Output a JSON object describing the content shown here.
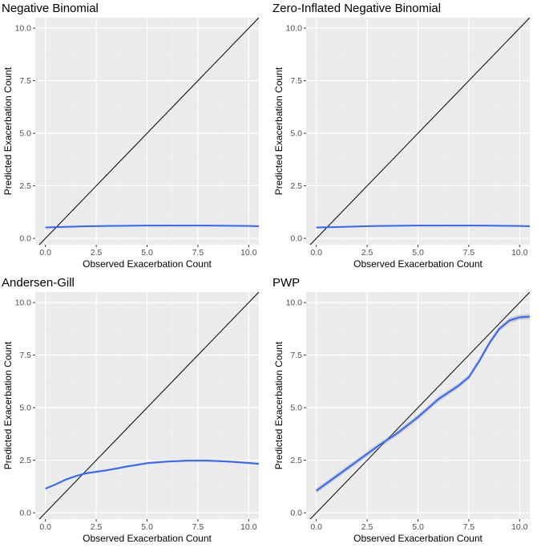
{
  "chart_data": [
    {
      "type": "line",
      "title": "Negative Binomial",
      "xlabel": "Observed Exacerbation Count",
      "ylabel": "Predicted Exacerbation Count",
      "xlim": [
        -0.5,
        10.5
      ],
      "ylim": [
        -0.3,
        10.5
      ],
      "xticks": [
        0,
        2.5,
        5,
        7.5,
        10
      ],
      "xtick_labels": [
        "0.0",
        "2.5",
        "5.0",
        "7.5",
        "10.0"
      ],
      "yticks": [
        0,
        2.5,
        5,
        7.5,
        10
      ],
      "ytick_labels": [
        "0.0",
        "2.5",
        "5.0",
        "7.5",
        "10.0"
      ],
      "reference_line": "y = x",
      "series": [
        {
          "name": "smooth fit",
          "color": "#3366ff",
          "x": [
            0,
            1,
            2,
            3,
            4,
            5,
            6,
            7,
            8,
            9,
            10,
            10.5
          ],
          "y": [
            0.52,
            0.55,
            0.58,
            0.59,
            0.6,
            0.61,
            0.61,
            0.61,
            0.61,
            0.6,
            0.59,
            0.58
          ],
          "band": 0.02
        }
      ]
    },
    {
      "type": "line",
      "title": "Zero-Inflated Negative Binomial",
      "xlabel": "Observed Exacerbation Count",
      "ylabel": "Predicted Exacerbation Count",
      "xlim": [
        -0.5,
        10.5
      ],
      "ylim": [
        -0.3,
        10.5
      ],
      "xticks": [
        0,
        2.5,
        5,
        7.5,
        10
      ],
      "xtick_labels": [
        "0.0",
        "2.5",
        "5.0",
        "7.5",
        "10.0"
      ],
      "yticks": [
        0,
        2.5,
        5,
        7.5,
        10
      ],
      "ytick_labels": [
        "0.0",
        "2.5",
        "5.0",
        "7.5",
        "10.0"
      ],
      "reference_line": "y = x",
      "series": [
        {
          "name": "smooth fit",
          "color": "#3366ff",
          "x": [
            0,
            1,
            2,
            3,
            4,
            5,
            6,
            7,
            8,
            9,
            10,
            10.5
          ],
          "y": [
            0.52,
            0.54,
            0.57,
            0.59,
            0.6,
            0.61,
            0.61,
            0.61,
            0.61,
            0.6,
            0.59,
            0.58
          ],
          "band": 0.02
        }
      ]
    },
    {
      "type": "line",
      "title": "Andersen-Gill",
      "xlabel": "Observed Exacerbation Count",
      "ylabel": "Predicted Exacerbation Count",
      "xlim": [
        -0.5,
        10.5
      ],
      "ylim": [
        -0.3,
        10.5
      ],
      "xticks": [
        0,
        2.5,
        5,
        7.5,
        10
      ],
      "xtick_labels": [
        "0.0",
        "2.5",
        "5.0",
        "7.5",
        "10.0"
      ],
      "yticks": [
        0,
        2.5,
        5,
        7.5,
        10
      ],
      "ytick_labels": [
        "0.0",
        "2.5",
        "5.0",
        "7.5",
        "10.0"
      ],
      "reference_line": "y = x",
      "series": [
        {
          "name": "smooth fit",
          "color": "#3366ff",
          "x": [
            0,
            0.5,
            1,
            1.5,
            2,
            3,
            4,
            5,
            6,
            7,
            8,
            9,
            10,
            10.5
          ],
          "y": [
            1.15,
            1.35,
            1.58,
            1.75,
            1.88,
            2.02,
            2.2,
            2.36,
            2.44,
            2.48,
            2.48,
            2.44,
            2.37,
            2.33
          ],
          "band": 0.05
        }
      ]
    },
    {
      "type": "line",
      "title": "PWP",
      "xlabel": "Observed Exacerbation Count",
      "ylabel": "Predicted Exacerbation Count",
      "xlim": [
        -0.5,
        10.5
      ],
      "ylim": [
        -0.3,
        10.5
      ],
      "xticks": [
        0,
        2.5,
        5,
        7.5,
        10
      ],
      "xtick_labels": [
        "0.0",
        "2.5",
        "5.0",
        "7.5",
        "10.0"
      ],
      "yticks": [
        0,
        2.5,
        5,
        7.5,
        10
      ],
      "ytick_labels": [
        "0.0",
        "2.5",
        "5.0",
        "7.5",
        "10.0"
      ],
      "reference_line": "y = x",
      "series": [
        {
          "name": "smooth fit",
          "color": "#3366ff",
          "x": [
            0,
            1,
            2,
            3,
            4,
            5,
            6,
            7,
            7.5,
            8,
            8.5,
            9,
            9.5,
            10,
            10.5
          ],
          "y": [
            1.05,
            1.75,
            2.45,
            3.15,
            3.8,
            4.55,
            5.4,
            6.05,
            6.45,
            7.2,
            8.05,
            8.75,
            9.15,
            9.3,
            9.33
          ],
          "band": 0.12
        }
      ]
    }
  ]
}
